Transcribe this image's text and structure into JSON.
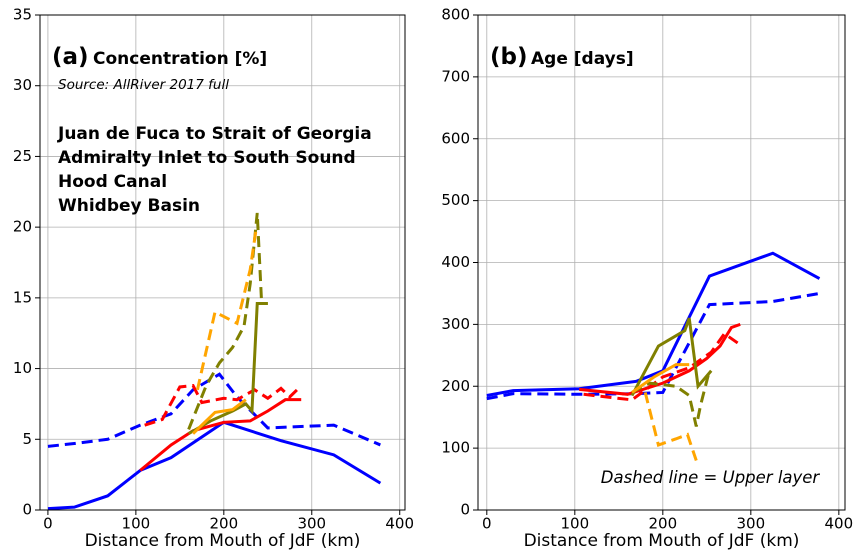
{
  "chart_data": [
    {
      "type": "line",
      "label": "(a)",
      "title": "Concentration [%]",
      "note": "Source: AllRiver 2017 full",
      "xlabel": "Distance from Mouth of JdF (km)",
      "xlim": [
        -9,
        406
      ],
      "ylim": [
        0,
        35
      ],
      "xticks": [
        0,
        100,
        200,
        300,
        400
      ],
      "yticks": [
        0,
        5,
        10,
        15,
        20,
        25,
        30,
        35
      ],
      "grid": true,
      "series": [
        {
          "name": "Juan de Fuca to Strait of Georgia",
          "color": "#0000ff",
          "dashed": false,
          "x": [
            0,
            30,
            68,
            105,
            140,
            200,
            265,
            325,
            378
          ],
          "values": [
            0.1,
            0.2,
            1.0,
            2.8,
            3.7,
            6.2,
            4.9,
            3.9,
            1.9
          ]
        },
        {
          "color": "#0000ff",
          "dashed": true,
          "x": [
            0,
            30,
            68,
            105,
            140,
            165,
            195,
            215,
            250,
            325,
            378
          ],
          "values": [
            4.5,
            4.7,
            5.0,
            6.0,
            6.8,
            8.5,
            9.6,
            8.0,
            5.8,
            6.0,
            4.6
          ]
        },
        {
          "name": "Admiralty Inlet to South Sound",
          "color": "#ff0000",
          "dashed": false,
          "x": [
            105,
            140,
            165,
            200,
            230,
            250,
            270,
            288
          ],
          "values": [
            2.8,
            4.6,
            5.6,
            6.2,
            6.3,
            7.0,
            7.8,
            7.8
          ]
        },
        {
          "color": "#ff0000",
          "dashed": true,
          "x": [
            110,
            130,
            150,
            165,
            175,
            200,
            215,
            235,
            250,
            265,
            275,
            285
          ],
          "values": [
            6.0,
            6.4,
            8.7,
            8.8,
            7.6,
            7.9,
            7.8,
            8.5,
            7.9,
            8.6,
            8.0,
            8.6
          ]
        },
        {
          "name": "Hood Canal",
          "color": "#808000",
          "dashed": false,
          "x": [
            160,
            185,
            210,
            225,
            232,
            238,
            250
          ],
          "values": [
            5.4,
            6.3,
            7.0,
            7.5,
            7.0,
            14.6,
            14.6
          ]
        },
        {
          "color": "#808000",
          "dashed": true,
          "x": [
            160,
            180,
            195,
            210,
            223,
            230,
            238,
            243,
            250
          ],
          "values": [
            5.7,
            8.8,
            10.4,
            11.5,
            13.0,
            16,
            21.0,
            14.6,
            14.6
          ]
        },
        {
          "name": "Whidbey Basin",
          "color": "#ffa500",
          "dashed": false,
          "x": [
            165,
            190,
            210,
            225
          ],
          "values": [
            5.4,
            6.9,
            7.1,
            7.8
          ]
        },
        {
          "color": "#ffa500",
          "dashed": true,
          "x": [
            170,
            190,
            215,
            230,
            237
          ],
          "values": [
            8.5,
            14.0,
            13.2,
            17,
            20
          ]
        }
      ]
    },
    {
      "type": "line",
      "label": "(b)",
      "title": "Age [days]",
      "note": "Dashed line = Upper layer",
      "xlabel": "Distance from Mouth of JdF (km)",
      "xlim": [
        -10,
        407
      ],
      "ylim": [
        0,
        800
      ],
      "xticks": [
        0,
        100,
        200,
        300,
        400
      ],
      "yticks": [
        0,
        100,
        200,
        300,
        400,
        500,
        600,
        700,
        800
      ],
      "grid": true,
      "series": [
        {
          "color": "#0000ff",
          "dashed": false,
          "x": [
            0,
            30,
            105,
            170,
            200,
            253,
            325,
            378
          ],
          "values": [
            185,
            193,
            196,
            208,
            225,
            378,
            415,
            374
          ]
        },
        {
          "color": "#0000ff",
          "dashed": true,
          "x": [
            0,
            30,
            105,
            170,
            200,
            253,
            325,
            378
          ],
          "values": [
            180,
            188,
            187,
            188,
            190,
            332,
            337,
            350
          ]
        },
        {
          "color": "#ff0000",
          "dashed": false,
          "x": [
            105,
            160,
            200,
            230,
            250,
            265,
            278,
            288
          ],
          "values": [
            195,
            187,
            205,
            225,
            245,
            265,
            295,
            300
          ]
        },
        {
          "color": "#ff0000",
          "dashed": true,
          "x": [
            110,
            140,
            165,
            200,
            230,
            255,
            270,
            285
          ],
          "values": [
            187,
            182,
            178,
            215,
            230,
            255,
            285,
            270
          ]
        },
        {
          "color": "#808000",
          "dashed": false,
          "x": [
            165,
            195,
            225,
            230,
            240,
            255
          ],
          "values": [
            185,
            265,
            290,
            310,
            200,
            225
          ]
        },
        {
          "color": "#808000",
          "dashed": true,
          "x": [
            165,
            185,
            215,
            230,
            238,
            243,
            252
          ],
          "values": [
            190,
            205,
            200,
            185,
            135,
            170,
            220
          ]
        },
        {
          "color": "#ffa500",
          "dashed": false,
          "x": [
            165,
            190,
            215,
            230
          ],
          "values": [
            190,
            215,
            235,
            235
          ]
        },
        {
          "color": "#ffa500",
          "dashed": true,
          "x": [
            180,
            195,
            215,
            228,
            238
          ],
          "values": [
            190,
            105,
            115,
            122,
            80
          ]
        }
      ]
    }
  ]
}
